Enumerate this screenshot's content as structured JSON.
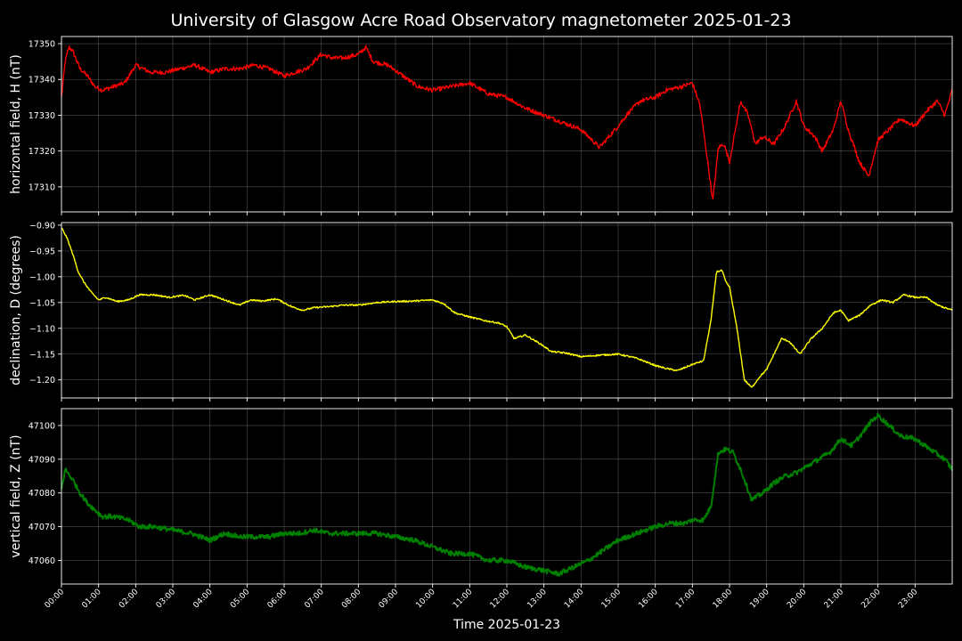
{
  "figure": {
    "title": "University of Glasgow Acre Road Observatory magnetometer 2025-01-23",
    "xlabel": "Time 2025-01-23",
    "background": "#000000",
    "foreground": "#ffffff"
  },
  "chart_data": [
    {
      "type": "line",
      "ylabel": "horizontal field, H (nT)",
      "color": "#ff0000",
      "ylim": [
        17303,
        17352
      ],
      "yticks": [
        17310,
        17320,
        17330,
        17340,
        17350
      ],
      "xlim": [
        0,
        24
      ],
      "xticks": [
        "00:00",
        "01:00",
        "02:00",
        "03:00",
        "04:00",
        "05:00",
        "06:00",
        "07:00",
        "08:00",
        "09:00",
        "10:00",
        "11:00",
        "12:00",
        "13:00",
        "14:00",
        "15:00",
        "16:00",
        "17:00",
        "18:00",
        "19:00",
        "20:00",
        "21:00",
        "22:00",
        "23:00"
      ],
      "grid": true,
      "noise": 0.6,
      "x": [
        0,
        0.1,
        0.2,
        0.3,
        0.5,
        0.7,
        0.9,
        1.1,
        1.4,
        1.7,
        2.0,
        2.4,
        2.8,
        3.2,
        3.6,
        4.0,
        4.4,
        4.8,
        5.2,
        5.6,
        6.0,
        6.3,
        6.6,
        7.0,
        7.3,
        7.6,
        8.0,
        8.2,
        8.4,
        8.8,
        9.2,
        9.6,
        10.0,
        10.5,
        11.0,
        11.5,
        12.0,
        12.5,
        13.0,
        13.5,
        14.0,
        14.5,
        15.0,
        15.3,
        15.6,
        16.0,
        16.3,
        16.7,
        17.0,
        17.2,
        17.4,
        17.55,
        17.7,
        17.85,
        18.0,
        18.3,
        18.5,
        18.7,
        18.9,
        19.2,
        19.5,
        19.8,
        20.0,
        20.3,
        20.5,
        20.8,
        21.0,
        21.2,
        21.5,
        21.75,
        22.0,
        22.3,
        22.6,
        23.0,
        23.3,
        23.6,
        23.8,
        24.0
      ],
      "y": [
        17335,
        17345,
        17349,
        17348,
        17343,
        17341,
        17338,
        17337,
        17338,
        17339,
        17344,
        17342,
        17342,
        17343,
        17344,
        17342,
        17343,
        17343,
        17344,
        17343,
        17341,
        17342,
        17343,
        17347,
        17346,
        17346,
        17347,
        17349,
        17345,
        17344,
        17341,
        17338,
        17337,
        17338,
        17339,
        17336,
        17335,
        17332,
        17330,
        17328,
        17326,
        17321,
        17327,
        17331,
        17334,
        17335,
        17337,
        17338,
        17339,
        17333,
        17318,
        17306,
        17321,
        17322,
        17317,
        17334,
        17330,
        17322,
        17324,
        17322,
        17327,
        17334,
        17327,
        17324,
        17320,
        17326,
        17334,
        17326,
        17317,
        17313,
        17323,
        17326,
        17329,
        17327,
        17331,
        17334,
        17330,
        17337
      ]
    },
    {
      "type": "line",
      "ylabel": "declination, D (degrees)",
      "color": "#ffff00",
      "ylim": [
        -1.235,
        -0.895
      ],
      "yticks": [
        -0.9,
        -0.95,
        -1.0,
        -1.05,
        -1.1,
        -1.15,
        -1.2
      ],
      "ytick_labels": [
        "−0.90",
        "−0.95",
        "−1.00",
        "−1.05",
        "−1.10",
        "−1.15",
        "−1.20"
      ],
      "xlim": [
        0,
        24
      ],
      "grid": true,
      "noise": 0.0015,
      "x": [
        0,
        0.15,
        0.3,
        0.45,
        0.6,
        0.8,
        1.0,
        1.2,
        1.5,
        1.8,
        2.1,
        2.5,
        2.9,
        3.3,
        3.6,
        4.0,
        4.4,
        4.8,
        5.1,
        5.4,
        5.8,
        6.2,
        6.5,
        6.8,
        7.2,
        7.6,
        8.0,
        8.5,
        9.0,
        9.5,
        10.0,
        10.3,
        10.6,
        11.0,
        11.4,
        11.8,
        12.0,
        12.2,
        12.5,
        12.9,
        13.2,
        13.6,
        14.0,
        14.5,
        15.0,
        15.5,
        16.0,
        16.3,
        16.6,
        17.0,
        17.3,
        17.5,
        17.65,
        17.8,
        17.9,
        18.0,
        18.2,
        18.4,
        18.6,
        18.8,
        19.0,
        19.2,
        19.4,
        19.6,
        19.9,
        20.2,
        20.5,
        20.8,
        21.0,
        21.2,
        21.5,
        21.8,
        22.1,
        22.4,
        22.7,
        23.0,
        23.3,
        23.6,
        24.0
      ],
      "y": [
        -0.905,
        -0.925,
        -0.955,
        -0.99,
        -1.01,
        -1.03,
        -1.045,
        -1.04,
        -1.048,
        -1.045,
        -1.035,
        -1.035,
        -1.04,
        -1.036,
        -1.045,
        -1.035,
        -1.045,
        -1.055,
        -1.045,
        -1.047,
        -1.043,
        -1.058,
        -1.065,
        -1.06,
        -1.058,
        -1.055,
        -1.055,
        -1.05,
        -1.048,
        -1.047,
        -1.045,
        -1.052,
        -1.07,
        -1.078,
        -1.085,
        -1.09,
        -1.097,
        -1.12,
        -1.113,
        -1.13,
        -1.145,
        -1.148,
        -1.155,
        -1.152,
        -1.15,
        -1.158,
        -1.172,
        -1.178,
        -1.182,
        -1.17,
        -1.163,
        -1.085,
        -0.99,
        -0.988,
        -1.01,
        -1.02,
        -1.1,
        -1.2,
        -1.215,
        -1.195,
        -1.18,
        -1.15,
        -1.12,
        -1.125,
        -1.15,
        -1.12,
        -1.1,
        -1.07,
        -1.065,
        -1.085,
        -1.075,
        -1.055,
        -1.045,
        -1.05,
        -1.035,
        -1.04,
        -1.04,
        -1.055,
        -1.065
      ]
    },
    {
      "type": "line",
      "ylabel": "vertical field, Z (nT)",
      "color": "#008000",
      "ylim": [
        47053,
        47105
      ],
      "yticks": [
        47060,
        47070,
        47080,
        47090,
        47100
      ],
      "xlim": [
        0,
        24
      ],
      "grid": true,
      "noise": 0.7,
      "x": [
        0,
        0.1,
        0.3,
        0.5,
        0.7,
        0.9,
        1.1,
        1.4,
        1.8,
        2.1,
        2.5,
        3.0,
        3.5,
        4.0,
        4.4,
        4.8,
        5.2,
        5.6,
        6.0,
        6.4,
        6.8,
        7.2,
        7.6,
        8.0,
        8.5,
        9.0,
        9.5,
        10.0,
        10.5,
        11.0,
        11.5,
        12.0,
        12.5,
        13.0,
        13.4,
        13.8,
        14.2,
        14.6,
        15.0,
        15.5,
        16.0,
        16.4,
        16.8,
        17.0,
        17.3,
        17.5,
        17.7,
        17.9,
        18.1,
        18.3,
        18.6,
        18.9,
        19.2,
        19.5,
        19.8,
        20.1,
        20.4,
        20.7,
        21.0,
        21.3,
        21.6,
        21.8,
        22.0,
        22.3,
        22.6,
        23.0,
        23.4,
        23.8,
        24.0
      ],
      "y": [
        47081,
        47087,
        47084,
        47080,
        47077,
        47075,
        47073,
        47073,
        47072,
        47070,
        47070,
        47069,
        47068,
        47066,
        47068,
        47067,
        47067,
        47067,
        47068,
        47068,
        47069,
        47068,
        47068,
        47068,
        47068,
        47067,
        47066,
        47064,
        47062,
        47062,
        47060,
        47060,
        47058,
        47057,
        47056,
        47058,
        47060,
        47063,
        47066,
        47068,
        47070,
        47071,
        47071,
        47072,
        47072,
        47076,
        47092,
        47093,
        47092,
        47087,
        47078,
        47080,
        47083,
        47085,
        47086,
        47088,
        47090,
        47092,
        47096,
        47094,
        47098,
        47101,
        47103,
        47100,
        47097,
        47096,
        47093,
        47090,
        47087
      ]
    }
  ]
}
